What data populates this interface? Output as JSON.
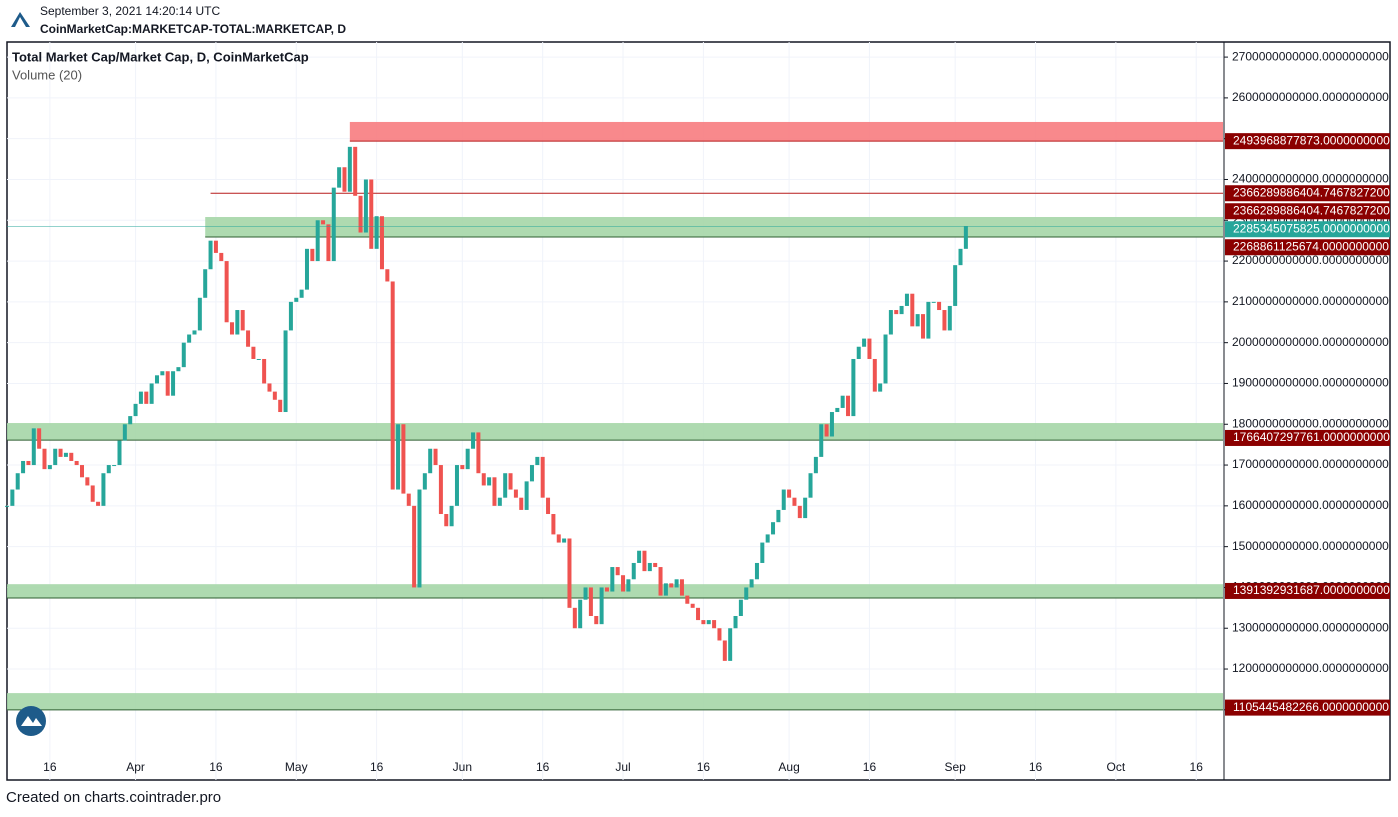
{
  "header": {
    "timestamp": "September 3, 2021 14:20:14 UTC",
    "symbol": "CoinMarketCap:MARKETCAP-TOTAL:MARKETCAP, D"
  },
  "footer": "Created on charts.cointrader.pro",
  "chart_data": {
    "type": "candlestick",
    "title": "Total Market Cap/Market Cap, D, CoinMarketCap",
    "subtitle": "Volume (20)",
    "x": [
      "2021-03-08",
      "2021-03-09",
      "2021-03-10",
      "2021-03-11",
      "2021-03-12",
      "2021-03-13",
      "2021-03-14",
      "2021-03-15",
      "2021-03-16",
      "2021-03-17",
      "2021-03-18",
      "2021-03-19",
      "2021-03-20",
      "2021-03-21",
      "2021-03-22",
      "2021-03-23",
      "2021-03-24",
      "2021-03-25",
      "2021-03-26",
      "2021-03-27",
      "2021-03-28",
      "2021-03-29",
      "2021-03-30",
      "2021-03-31",
      "2021-04-01",
      "2021-04-02",
      "2021-04-03",
      "2021-04-04",
      "2021-04-05",
      "2021-04-06",
      "2021-04-07",
      "2021-04-08",
      "2021-04-09",
      "2021-04-10",
      "2021-04-11",
      "2021-04-12",
      "2021-04-13",
      "2021-04-14",
      "2021-04-15",
      "2021-04-16",
      "2021-04-17",
      "2021-04-18",
      "2021-04-19",
      "2021-04-20",
      "2021-04-21",
      "2021-04-22",
      "2021-04-23",
      "2021-04-24",
      "2021-04-25",
      "2021-04-26",
      "2021-04-27",
      "2021-04-28",
      "2021-04-29",
      "2021-04-30",
      "2021-05-01",
      "2021-05-02",
      "2021-05-03",
      "2021-05-04",
      "2021-05-05",
      "2021-05-06",
      "2021-05-07",
      "2021-05-08",
      "2021-05-09",
      "2021-05-10",
      "2021-05-11",
      "2021-05-12",
      "2021-05-13",
      "2021-05-14",
      "2021-05-15",
      "2021-05-16",
      "2021-05-17",
      "2021-05-18",
      "2021-05-19",
      "2021-05-20",
      "2021-05-21",
      "2021-05-22",
      "2021-05-23",
      "2021-05-24",
      "2021-05-25",
      "2021-05-26",
      "2021-05-27",
      "2021-05-28",
      "2021-05-29",
      "2021-05-30",
      "2021-05-31",
      "2021-06-01",
      "2021-06-02",
      "2021-06-03",
      "2021-06-04",
      "2021-06-05",
      "2021-06-06",
      "2021-06-07",
      "2021-06-08",
      "2021-06-09",
      "2021-06-10",
      "2021-06-11",
      "2021-06-12",
      "2021-06-13",
      "2021-06-14",
      "2021-06-15",
      "2021-06-16",
      "2021-06-17",
      "2021-06-18",
      "2021-06-19",
      "2021-06-20",
      "2021-06-21",
      "2021-06-22",
      "2021-06-23",
      "2021-06-24",
      "2021-06-25",
      "2021-06-26",
      "2021-06-27",
      "2021-06-28",
      "2021-06-29",
      "2021-06-30",
      "2021-07-01",
      "2021-07-02",
      "2021-07-03",
      "2021-07-04",
      "2021-07-05",
      "2021-07-06",
      "2021-07-07",
      "2021-07-08",
      "2021-07-09",
      "2021-07-10",
      "2021-07-11",
      "2021-07-12",
      "2021-07-13",
      "2021-07-14",
      "2021-07-15",
      "2021-07-16",
      "2021-07-17",
      "2021-07-18",
      "2021-07-19",
      "2021-07-20",
      "2021-07-21",
      "2021-07-22",
      "2021-07-23",
      "2021-07-24",
      "2021-07-25",
      "2021-07-26",
      "2021-07-27",
      "2021-07-28",
      "2021-07-29",
      "2021-07-30",
      "2021-07-31",
      "2021-08-01",
      "2021-08-02",
      "2021-08-03",
      "2021-08-04",
      "2021-08-05",
      "2021-08-06",
      "2021-08-07",
      "2021-08-08",
      "2021-08-09",
      "2021-08-10",
      "2021-08-11",
      "2021-08-12",
      "2021-08-13",
      "2021-08-14",
      "2021-08-15",
      "2021-08-16",
      "2021-08-17",
      "2021-08-18",
      "2021-08-19",
      "2021-08-20",
      "2021-08-21",
      "2021-08-22",
      "2021-08-23",
      "2021-08-24",
      "2021-08-25",
      "2021-08-26",
      "2021-08-27",
      "2021-08-28",
      "2021-08-29",
      "2021-08-30",
      "2021-08-31",
      "2021-09-01",
      "2021-09-02",
      "2021-09-03"
    ],
    "series": [
      {
        "up_color": "#26a69a",
        "down_color": "#ef5350",
        "close": [
          1600000000000.0,
          1640000000000.0,
          1680000000000.0,
          1710000000000.0,
          1700000000000.0,
          1790000000000.0,
          1740000000000.0,
          1690000000000.0,
          1700000000000.0,
          1740000000000.0,
          1720000000000.0,
          1730000000000.0,
          1710000000000.0,
          1700000000000.0,
          1670000000000.0,
          1650000000000.0,
          1610000000000.0,
          1600000000000.0,
          1680000000000.0,
          1700000000000.0,
          1700000000000.0,
          1760000000000.0,
          1800000000000.0,
          1820000000000.0,
          1850000000000.0,
          1880000000000.0,
          1850000000000.0,
          1900000000000.0,
          1920000000000.0,
          1930000000000.0,
          1870000000000.0,
          1930000000000.0,
          1940000000000.0,
          2000000000000.0,
          2020000000000.0,
          2030000000000.0,
          2110000000000.0,
          2180000000000.0,
          2250000000000.0,
          2220000000000.0,
          2200000000000.0,
          2050000000000.0,
          2020000000000.0,
          2080000000000.0,
          2030000000000.0,
          1990000000000.0,
          1960000000000.0,
          1960000000000.0,
          1900000000000.0,
          1880000000000.0,
          1860000000000.0,
          1830000000000.0,
          2030000000000.0,
          2100000000000.0,
          2110000000000.0,
          2130000000000.0,
          2230000000000.0,
          2200000000000.0,
          2300000000000.0,
          2290000000000.0,
          2200000000000.0,
          2380000000000.0,
          2430000000000.0,
          2370000000000.0,
          2480000000000.0,
          2360000000000.0,
          2270000000000.0,
          2400000000000.0,
          2230000000000.0,
          2310000000000.0,
          2180000000000.0,
          2150000000000.0,
          1640000000000.0,
          1800000000000.0,
          1630000000000.0,
          1600000000000.0,
          1400000000000.0,
          1640000000000.0,
          1680000000000.0,
          1740000000000.0,
          1700000000000.0,
          1580000000000.0,
          1550000000000.0,
          1600000000000.0,
          1700000000000.0,
          1690000000000.0,
          1740000000000.0,
          1780000000000.0,
          1680000000000.0,
          1650000000000.0,
          1670000000000.0,
          1600000000000.0,
          1620000000000.0,
          1680000000000.0,
          1640000000000.0,
          1620000000000.0,
          1590000000000.0,
          1660000000000.0,
          1700000000000.0,
          1720000000000.0,
          1620000000000.0,
          1580000000000.0,
          1530000000000.0,
          1510000000000.0,
          1520000000000.0,
          1350000000000.0,
          1300000000000.0,
          1370000000000.0,
          1400000000000.0,
          1330000000000.0,
          1310000000000.0,
          1400000000000.0,
          1390000000000.0,
          1450000000000.0,
          1430000000000.0,
          1390000000000.0,
          1420000000000.0,
          1460000000000.0,
          1490000000000.0,
          1440000000000.0,
          1460000000000.0,
          1450000000000.0,
          1380000000000.0,
          1410000000000.0,
          1400000000000.0,
          1420000000000.0,
          1380000000000.0,
          1360000000000.0,
          1350000000000.0,
          1320000000000.0,
          1310000000000.0,
          1320000000000.0,
          1300000000000.0,
          1270000000000.0,
          1220000000000.0,
          1300000000000.0,
          1330000000000.0,
          1370000000000.0,
          1400000000000.0,
          1420000000000.0,
          1460000000000.0,
          1510000000000.0,
          1530000000000.0,
          1560000000000.0,
          1590000000000.0,
          1640000000000.0,
          1620000000000.0,
          1600000000000.0,
          1570000000000.0,
          1620000000000.0,
          1680000000000.0,
          1720000000000.0,
          1800000000000.0,
          1770000000000.0,
          1830000000000.0,
          1840000000000.0,
          1870000000000.0,
          1820000000000.0,
          1960000000000.0,
          1990000000000.0,
          2010000000000.0,
          1960000000000.0,
          1880000000000.0,
          1900000000000.0,
          2020000000000.0,
          2080000000000.0,
          2070000000000.0,
          2090000000000.0,
          2120000000000.0,
          2040000000000.0,
          2070000000000.0,
          2010000000000.0,
          2100000000000.0,
          2100000000000.0,
          2080000000000.0,
          2030000000000.0,
          2090000000000.0,
          2190000000000.0,
          2230000000000.0,
          2285345075825
        ]
      }
    ],
    "xlim": [
      "2021-03-08",
      "2021-10-21"
    ],
    "xticks": [
      {
        "value": "2021-03-16",
        "label": "16"
      },
      {
        "value": "2021-04-01",
        "label": "Apr"
      },
      {
        "value": "2021-04-16",
        "label": "16"
      },
      {
        "value": "2021-05-01",
        "label": "May"
      },
      {
        "value": "2021-05-16",
        "label": "16"
      },
      {
        "value": "2021-06-01",
        "label": "Jun"
      },
      {
        "value": "2021-06-16",
        "label": "16"
      },
      {
        "value": "2021-07-01",
        "label": "Jul"
      },
      {
        "value": "2021-07-16",
        "label": "16"
      },
      {
        "value": "2021-08-01",
        "label": "Aug"
      },
      {
        "value": "2021-08-16",
        "label": "16"
      },
      {
        "value": "2021-09-01",
        "label": "Sep"
      },
      {
        "value": "2021-09-16",
        "label": "16"
      },
      {
        "value": "2021-10-01",
        "label": "Oct"
      },
      {
        "value": "2021-10-16",
        "label": "16"
      }
    ],
    "ylim": [
      928000000000.0,
      2737000000000.0
    ],
    "yticks": [
      {
        "value": 1100000000000.0,
        "label": "1100000000000.0000000000"
      },
      {
        "value": 1200000000000.0,
        "label": "1200000000000.0000000000"
      },
      {
        "value": 1300000000000.0,
        "label": "1300000000000.0000000000"
      },
      {
        "value": 1400000000000.0,
        "label": "1400000000000.0000000000"
      },
      {
        "value": 1500000000000.0,
        "label": "1500000000000.0000000000"
      },
      {
        "value": 1600000000000.0,
        "label": "1600000000000.0000000000"
      },
      {
        "value": 1700000000000.0,
        "label": "1700000000000.0000000000"
      },
      {
        "value": 1800000000000.0,
        "label": "1800000000000.0000000000"
      },
      {
        "value": 1900000000000.0,
        "label": "1900000000000.0000000000"
      },
      {
        "value": 2000000000000.0,
        "label": "2000000000000.0000000000"
      },
      {
        "value": 2100000000000.0,
        "label": "2100000000000.0000000000"
      },
      {
        "value": 2200000000000.0,
        "label": "2200000000000.0000000000"
      },
      {
        "value": 2300000000000.0,
        "label": "2300000000000.0000000000"
      },
      {
        "value": 2400000000000.0,
        "label": "2400000000000.0000000000"
      },
      {
        "value": 2500000000000.0,
        "label": "2500000000000.0000000000"
      },
      {
        "value": 2600000000000.0,
        "label": "2600000000000.0000000000"
      },
      {
        "value": 2700000000000.0,
        "label": "2700000000000.0000000000"
      }
    ],
    "grid": true,
    "zones": [
      {
        "from": 2494000000000.0,
        "to": 2541000000000.0,
        "start": "2021-05-11",
        "color": "#f77c80"
      },
      {
        "from": 2259000000000.0,
        "to": 2308000000000.0,
        "start": "2021-04-14",
        "color": "#a5d6a7"
      },
      {
        "from": 1761000000000.0,
        "to": 1803000000000.0,
        "color": "#a5d6a7"
      },
      {
        "from": 1374000000000.0,
        "to": 1408000000000.0,
        "color": "#a5d6a7"
      },
      {
        "from": 1100000000000.0,
        "to": 1141000000000.0,
        "color": "#a5d6a7"
      }
    ],
    "lines": [
      {
        "value": 2366289886404.747,
        "start": "2021-04-15",
        "color": "#b71c1c"
      }
    ],
    "price_labels": [
      {
        "value": 2493968877873,
        "label": "2493968877873.0000000000",
        "color": "#8b0000"
      },
      {
        "value": 2366289886404.747,
        "label": "2366289886404.7467827200",
        "color": "#8b0000"
      },
      {
        "value": 2366289886404.747,
        "label": "2366289886404.7467827200",
        "color": "#8b0000"
      },
      {
        "value": 2285345075825,
        "label": "2285345075825.0000000000",
        "color": "#26a69a"
      },
      {
        "value": 2268861125674,
        "label": "2268861125674.0000000000",
        "color": "#8b0000"
      },
      {
        "value": 1766407297761,
        "label": "1766407297761.0000000000",
        "color": "#8b0000"
      },
      {
        "value": 1391392931687,
        "label": "1391392931687.0000000000",
        "color": "#8b0000"
      },
      {
        "value": 1105445482266,
        "label": "1105445482266.0000000000",
        "color": "#8b0000"
      }
    ]
  }
}
